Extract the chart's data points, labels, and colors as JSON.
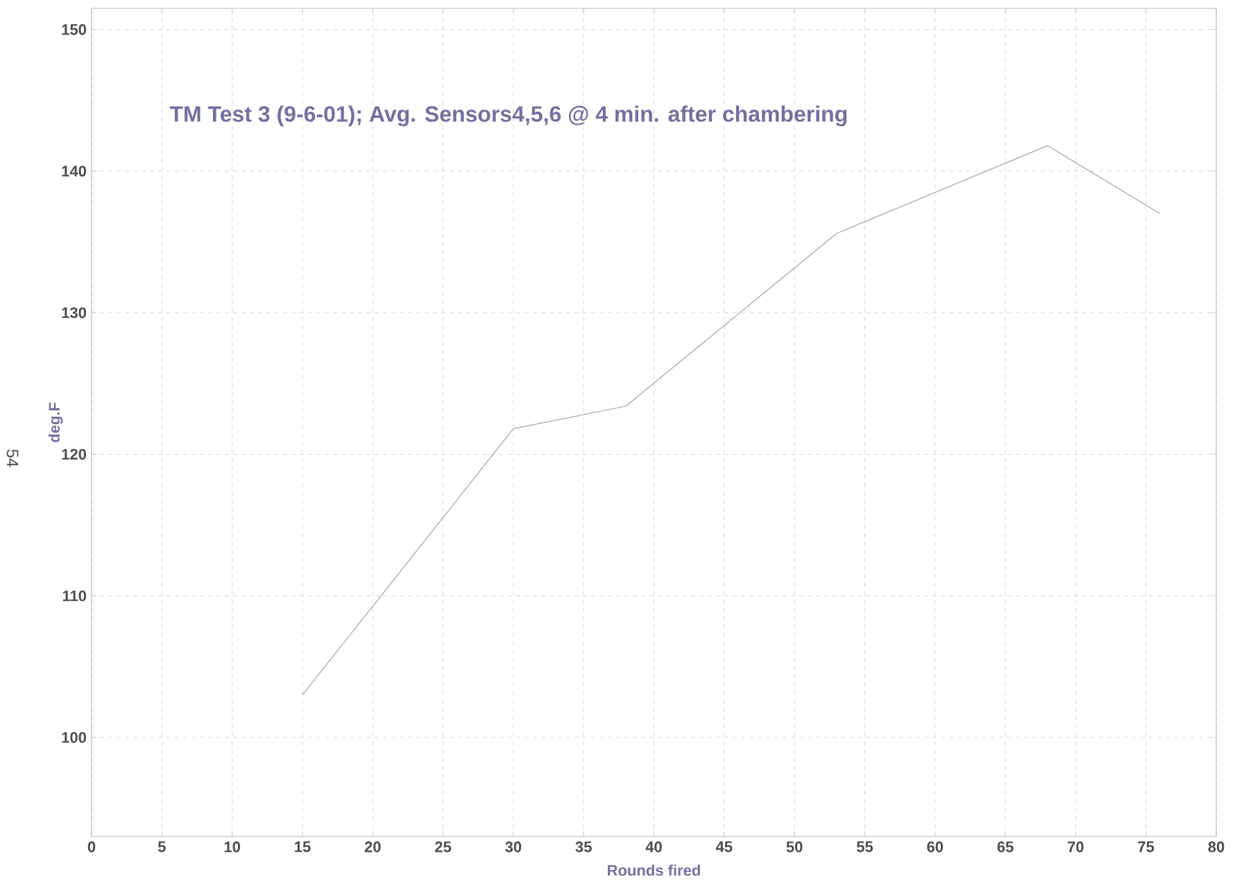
{
  "chart_data": {
    "type": "line",
    "title": "TM Test 3 (9-6-01); Avg. Sensors4,5,6 @ 4 min. after chambering",
    "xlabel": "Rounds fired",
    "ylabel": "deg.F",
    "x": [
      15,
      30,
      38,
      53,
      68,
      76
    ],
    "series": [
      {
        "color": "#a0a0b4",
        "values": [
          103,
          121.8,
          123.4,
          135.6,
          141.8,
          137
        ]
      }
    ],
    "xlim": [
      0,
      80
    ],
    "xticks": [
      0,
      5,
      10,
      15,
      20,
      25,
      30,
      35,
      40,
      45,
      50,
      55,
      60,
      65,
      70,
      75,
      80
    ],
    "ylim": [
      93,
      151.5
    ],
    "yticks": [
      100,
      110,
      120,
      130,
      140,
      150
    ],
    "grid": true,
    "marker": "none",
    "line_style": "solid",
    "annotations": [
      "54"
    ]
  }
}
